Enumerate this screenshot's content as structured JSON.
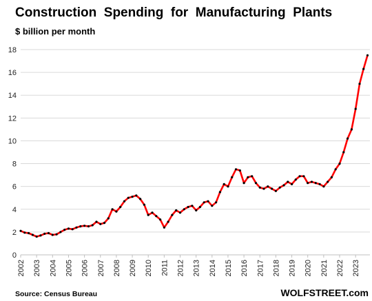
{
  "chart_data": {
    "type": "line",
    "title": "Construction  Spending  for  Manufacturing  Plants",
    "subtitle": "$ billion per month",
    "source": "Source: Census Bureau",
    "brand": "WOLFSTREET.com",
    "ylim": [
      0,
      18
    ],
    "yticks": [
      "0",
      "2",
      "4",
      "6",
      "8",
      "10",
      "12",
      "14",
      "16",
      "18"
    ],
    "xlim": [
      2002,
      2023.9
    ],
    "xticks": [
      "2002",
      "2003",
      "2004",
      "2005",
      "2006",
      "2007",
      "2008",
      "2009",
      "2010",
      "2011",
      "2012",
      "2013",
      "2014",
      "2015",
      "2016",
      "2017",
      "2018",
      "2019",
      "2020",
      "2021",
      "2022",
      "2023"
    ],
    "grid": true,
    "colors": {
      "line": "#ff0000",
      "marker": "#000000",
      "grid": "#d9d9d9"
    },
    "series": [
      {
        "x": [
          2002.0,
          2002.25,
          2002.5,
          2002.75,
          2003.0,
          2003.25,
          2003.5,
          2003.75,
          2004.0,
          2004.25,
          2004.5,
          2004.75,
          2005.0,
          2005.25,
          2005.5,
          2005.75,
          2006.0,
          2006.25,
          2006.5,
          2006.75,
          2007.0,
          2007.25,
          2007.5,
          2007.75,
          2008.0,
          2008.25,
          2008.5,
          2008.75,
          2009.0,
          2009.25,
          2009.5,
          2009.75,
          2010.0,
          2010.25,
          2010.5,
          2010.75,
          2011.0,
          2011.25,
          2011.5,
          2011.75,
          2012.0,
          2012.25,
          2012.5,
          2012.75,
          2013.0,
          2013.25,
          2013.5,
          2013.75,
          2014.0,
          2014.25,
          2014.5,
          2014.75,
          2015.0,
          2015.25,
          2015.5,
          2015.75,
          2016.0,
          2016.25,
          2016.5,
          2016.75,
          2017.0,
          2017.25,
          2017.5,
          2017.75,
          2018.0,
          2018.25,
          2018.5,
          2018.75,
          2019.0,
          2019.25,
          2019.5,
          2019.75,
          2020.0,
          2020.25,
          2020.5,
          2020.75,
          2021.0,
          2021.25,
          2021.5,
          2021.75,
          2022.0,
          2022.25,
          2022.5,
          2022.75,
          2023.0,
          2023.25,
          2023.5,
          2023.75
        ],
        "values": [
          2.1,
          1.95,
          1.9,
          1.75,
          1.6,
          1.7,
          1.85,
          1.9,
          1.75,
          1.8,
          2.0,
          2.2,
          2.3,
          2.25,
          2.4,
          2.5,
          2.55,
          2.5,
          2.6,
          2.9,
          2.7,
          2.8,
          3.2,
          4.0,
          3.8,
          4.2,
          4.7,
          5.0,
          5.1,
          5.2,
          4.9,
          4.4,
          3.5,
          3.7,
          3.4,
          3.1,
          2.4,
          2.9,
          3.5,
          3.9,
          3.7,
          4.0,
          4.2,
          4.3,
          3.9,
          4.2,
          4.6,
          4.7,
          4.3,
          4.6,
          5.5,
          6.2,
          6.0,
          6.8,
          7.5,
          7.4,
          6.3,
          6.8,
          6.9,
          6.3,
          5.9,
          5.8,
          6.0,
          5.8,
          5.6,
          5.9,
          6.1,
          6.4,
          6.2,
          6.6,
          6.9,
          6.9,
          6.3,
          6.4,
          6.3,
          6.2,
          6.0,
          6.4,
          6.8,
          7.5,
          8.0,
          9.0,
          10.2,
          11.0,
          12.8,
          15.0,
          16.3,
          17.5
        ]
      }
    ]
  }
}
